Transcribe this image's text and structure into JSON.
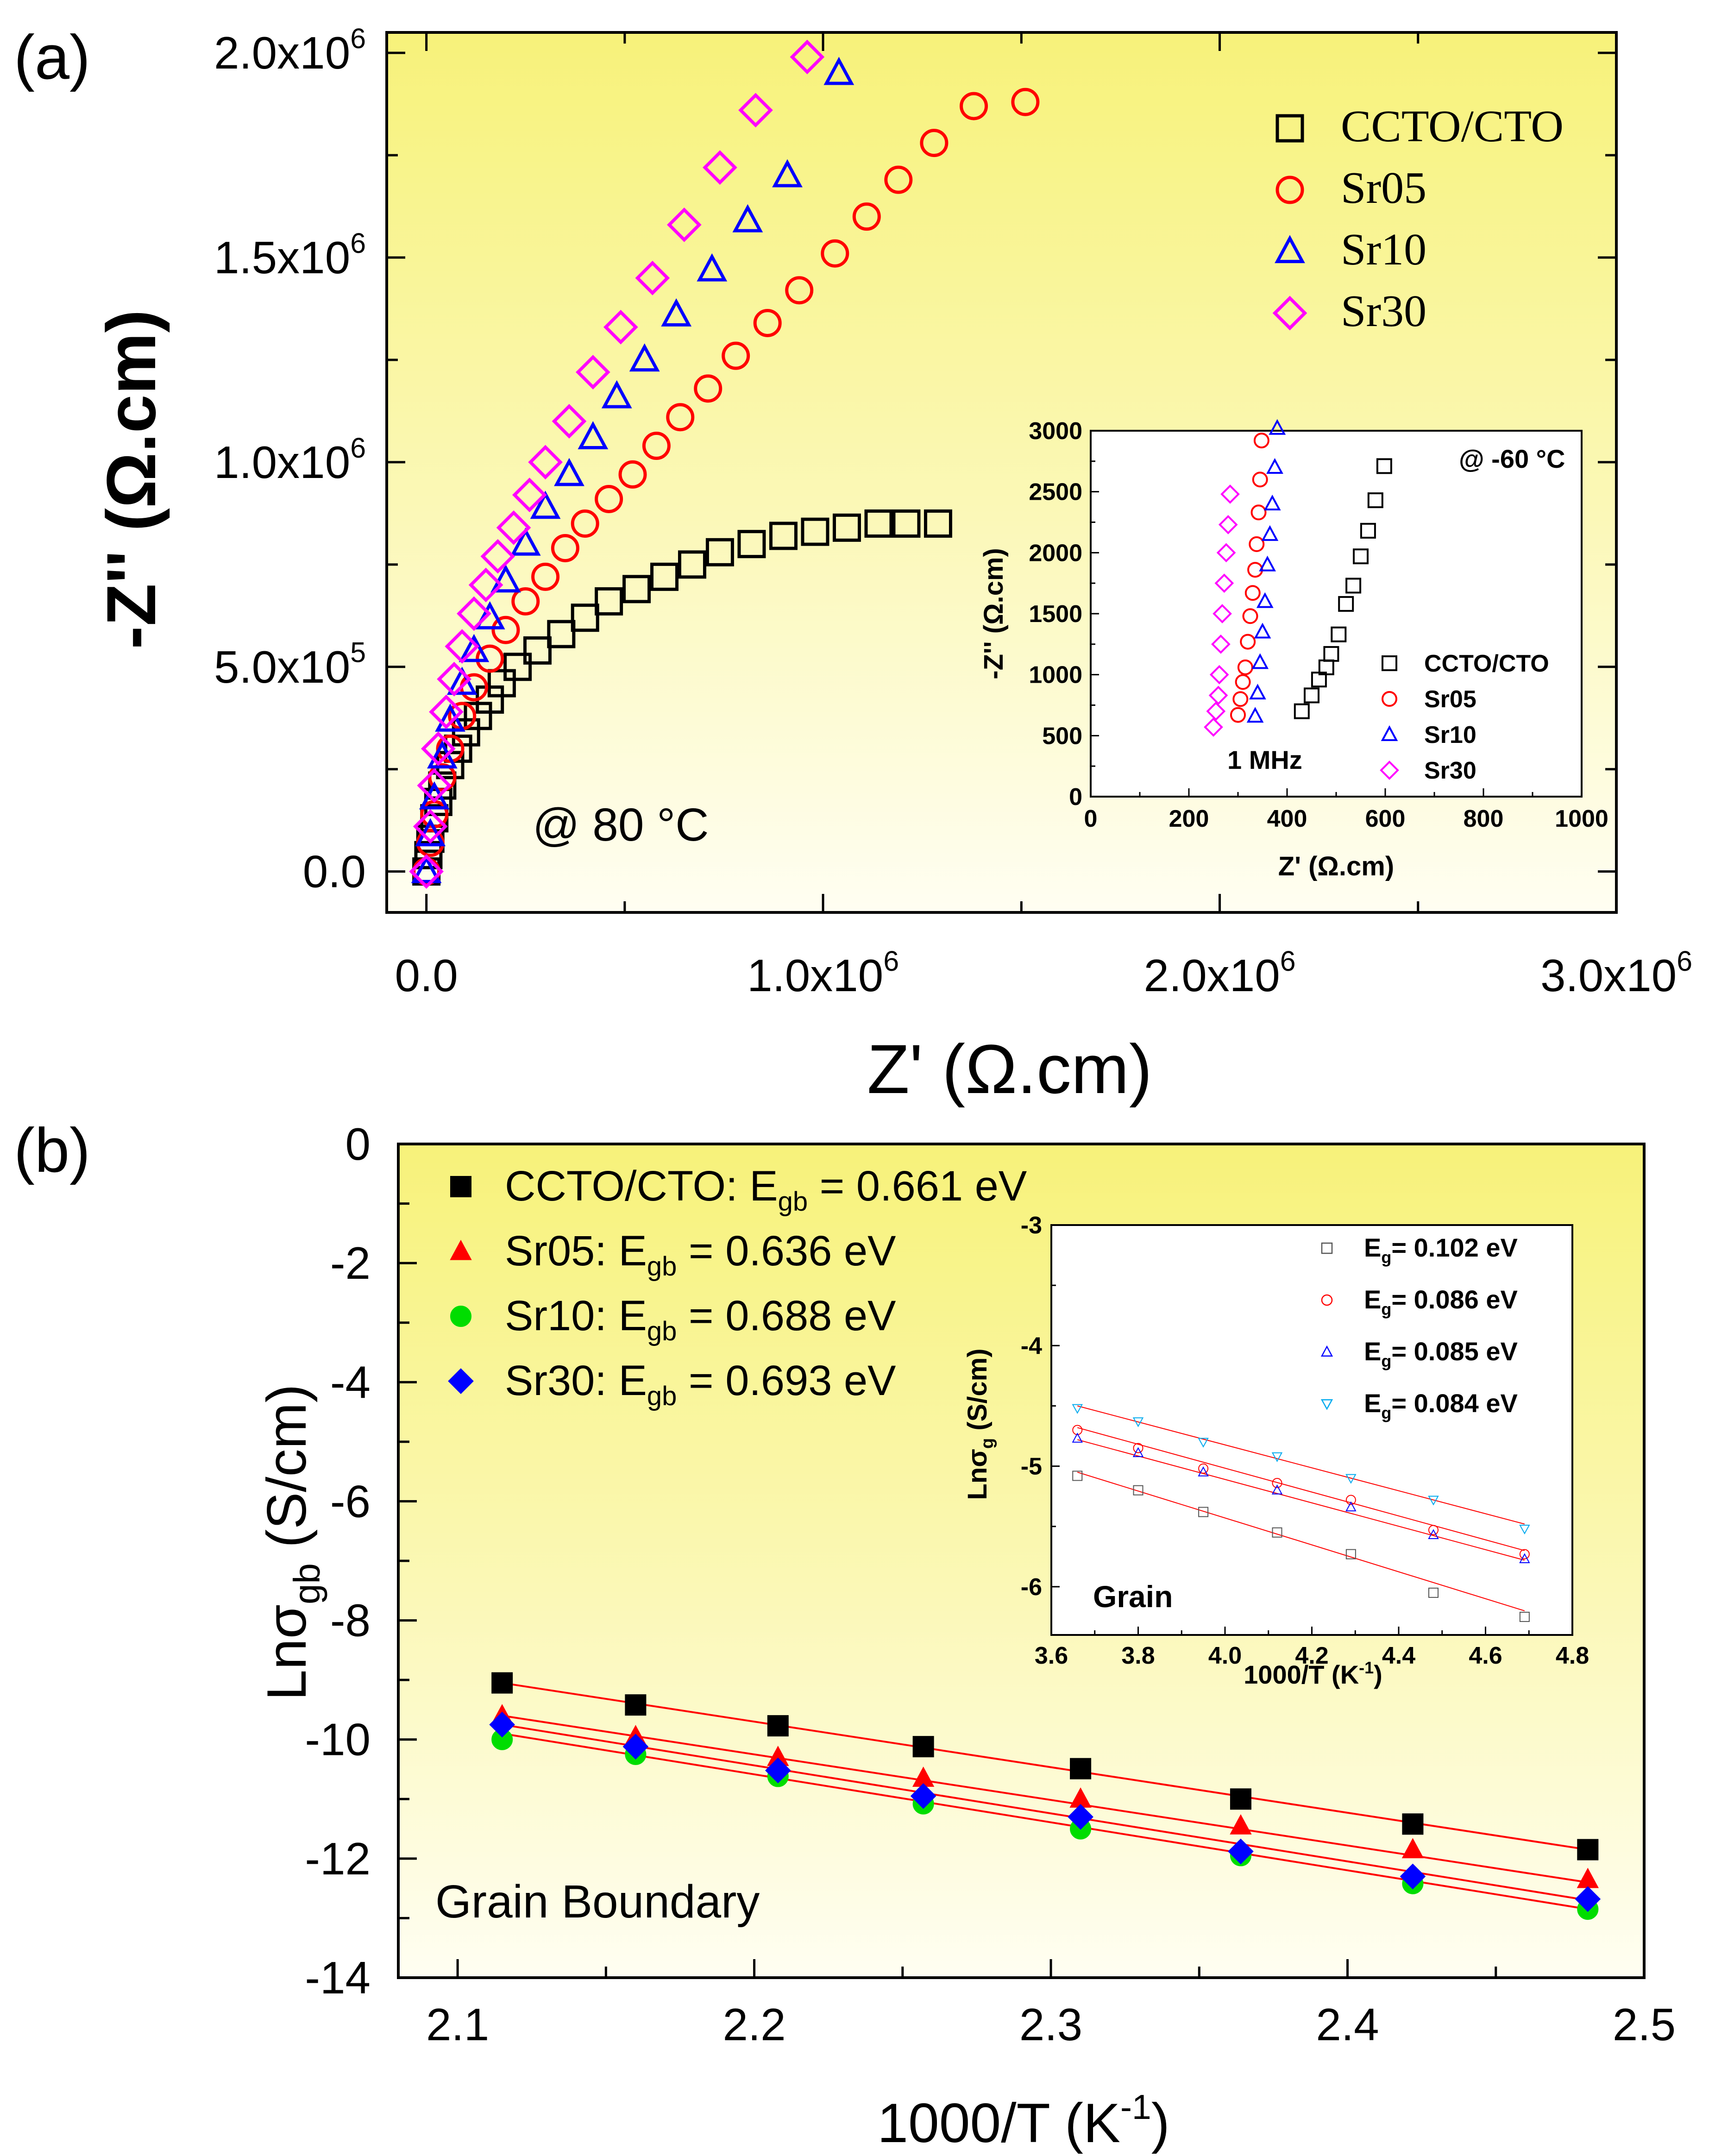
{
  "figure": {
    "panel_a_label": "(a)",
    "panel_b_label": "(b)"
  },
  "chart_data": [
    {
      "id": "panel-a-main",
      "type": "scatter",
      "title": "",
      "xlabel": "Z' (Ω.cm)",
      "ylabel": "-Z'' (Ω.cm)",
      "xlim": [
        -100000,
        3000000
      ],
      "ylim": [
        -100000,
        2050000
      ],
      "x_tick_labels": [
        {
          "value": 0,
          "mant": "0.0",
          "exp": ""
        },
        {
          "value": 1000000,
          "mant": "1.0x10",
          "exp": "6"
        },
        {
          "value": 2000000,
          "mant": "2.0x10",
          "exp": "6"
        },
        {
          "value": 3000000,
          "mant": "3.0x10",
          "exp": "6"
        }
      ],
      "y_tick_labels": [
        {
          "value": 0,
          "mant": "0.0",
          "exp": ""
        },
        {
          "value": 500000,
          "mant": "5.0x10",
          "exp": "5"
        },
        {
          "value": 1000000,
          "mant": "1.0x10",
          "exp": "6"
        },
        {
          "value": 1500000,
          "mant": "1.5x10",
          "exp": "6"
        },
        {
          "value": 2000000,
          "mant": "2.0x10",
          "exp": "6"
        }
      ],
      "annotation": "@ 80 °C",
      "legend_position": "top-right",
      "grid": false,
      "background": "yellow-gradient",
      "series": [
        {
          "name": "CCTO/CTO",
          "marker": "square",
          "color": "#000000",
          "x": [
            0,
            5000,
            10000,
            20000,
            30000,
            40000,
            60000,
            80000,
            100000,
            130000,
            160000,
            190000,
            230000,
            280000,
            340000,
            400000,
            460000,
            530000,
            600000,
            670000,
            740000,
            820000,
            900000,
            980000,
            1060000,
            1140000,
            1210000,
            1290000
          ],
          "y": [
            0,
            40000,
            80000,
            130000,
            170000,
            210000,
            260000,
            300000,
            340000,
            380000,
            420000,
            460000,
            500000,
            540000,
            580000,
            620000,
            660000,
            690000,
            720000,
            750000,
            780000,
            800000,
            820000,
            830000,
            840000,
            850000,
            850000,
            850000
          ]
        },
        {
          "name": "Sr05",
          "marker": "circle",
          "color": "#ff0000",
          "x": [
            0,
            10000,
            20000,
            40000,
            60000,
            90000,
            120000,
            160000,
            200000,
            250000,
            300000,
            350000,
            400000,
            460000,
            520000,
            580000,
            640000,
            710000,
            780000,
            860000,
            940000,
            1030000,
            1110000,
            1190000,
            1280000,
            1380000,
            1510000
          ],
          "y": [
            0,
            70000,
            140000,
            230000,
            300000,
            380000,
            450000,
            520000,
            590000,
            660000,
            720000,
            790000,
            850000,
            910000,
            970000,
            1040000,
            1110000,
            1180000,
            1260000,
            1340000,
            1420000,
            1510000,
            1600000,
            1690000,
            1780000,
            1870000,
            1880000
          ]
        },
        {
          "name": "Sr10",
          "marker": "triangle",
          "color": "#0000ff",
          "x": [
            0,
            10000,
            20000,
            40000,
            60000,
            90000,
            120000,
            160000,
            200000,
            250000,
            300000,
            360000,
            420000,
            480000,
            550000,
            630000,
            720000,
            810000,
            910000,
            1040000
          ],
          "y": [
            0,
            90000,
            180000,
            280000,
            370000,
            460000,
            540000,
            620000,
            710000,
            800000,
            890000,
            970000,
            1060000,
            1160000,
            1250000,
            1360000,
            1470000,
            1590000,
            1700000,
            1950000
          ]
        },
        {
          "name": "Sr30",
          "marker": "diamond",
          "color": "#ff00ff",
          "x": [
            0,
            10000,
            20000,
            30000,
            50000,
            70000,
            90000,
            120000,
            150000,
            180000,
            220000,
            260000,
            300000,
            360000,
            420000,
            490000,
            570000,
            650000,
            740000,
            830000,
            960000
          ],
          "y": [
            0,
            110000,
            210000,
            300000,
            390000,
            470000,
            550000,
            630000,
            700000,
            770000,
            840000,
            920000,
            1000000,
            1100000,
            1220000,
            1330000,
            1450000,
            1580000,
            1720000,
            1860000,
            1990000
          ]
        }
      ]
    },
    {
      "id": "panel-a-inset",
      "type": "scatter",
      "xlabel": "Z' (Ω.cm)",
      "ylabel": "-Z'' (Ω.cm)",
      "xlim": [
        0,
        1000
      ],
      "ylim": [
        0,
        3000
      ],
      "x_ticks": [
        0,
        200,
        400,
        600,
        800,
        1000
      ],
      "y_ticks": [
        0,
        500,
        1000,
        1500,
        2000,
        2500,
        3000
      ],
      "annotation": "@ -60 °C",
      "freq_label": "1 MHz",
      "series": [
        {
          "name": "CCTO/CTO",
          "marker": "square",
          "color": "#000000",
          "x": [
            430,
            450,
            465,
            480,
            490,
            505,
            520,
            535,
            550,
            565,
            580,
            598
          ],
          "y": [
            700,
            830,
            960,
            1060,
            1170,
            1330,
            1580,
            1730,
            1970,
            2180,
            2430,
            2710
          ]
        },
        {
          "name": "Sr05",
          "marker": "circle",
          "color": "#ff0000",
          "x": [
            300,
            305,
            310,
            315,
            320,
            325,
            330,
            335,
            338,
            342,
            345,
            348
          ],
          "y": [
            670,
            800,
            940,
            1060,
            1270,
            1480,
            1670,
            1860,
            2070,
            2330,
            2600,
            2920
          ]
        },
        {
          "name": "Sr10",
          "marker": "triangle",
          "color": "#0000ff",
          "x": [
            335,
            340,
            345,
            350,
            355,
            360,
            365,
            370,
            375,
            380
          ],
          "y": [
            660,
            850,
            1100,
            1350,
            1600,
            1900,
            2150,
            2400,
            2700,
            3020
          ]
        },
        {
          "name": "Sr30",
          "marker": "diamond",
          "color": "#ff00ff",
          "x": [
            250,
            255,
            260,
            262,
            265,
            268,
            272,
            276,
            280,
            284
          ],
          "y": [
            570,
            700,
            830,
            1000,
            1250,
            1500,
            1750,
            2000,
            2230,
            2480
          ]
        }
      ]
    },
    {
      "id": "panel-b-main",
      "type": "scatter",
      "xlabel": "1000/T (K",
      "xlabel_sup": "-1",
      "xlabel_tail": ")",
      "ylabel": "Lnσ",
      "ylabel_sub": "gb",
      "ylabel_tail": " (S/cm)",
      "xlim": [
        2.08,
        2.5
      ],
      "ylim": [
        -14,
        0
      ],
      "x_ticks": [
        2.1,
        2.2,
        2.3,
        2.4,
        2.5
      ],
      "y_ticks": [
        0,
        -2,
        -4,
        -6,
        -8,
        -10,
        -12,
        -14
      ],
      "annotation": "Grain Boundary",
      "legend_position": "top-left",
      "series": [
        {
          "name": "CCTO/CTO",
          "marker": "square-filled",
          "color": "#000000",
          "line_color": "#ff0000",
          "legend_prefix": "CCTO/CTO: E",
          "legend_sub": "gb",
          "legend_value": " = 0.661 eV",
          "x": [
            2.115,
            2.16,
            2.208,
            2.257,
            2.31,
            2.364,
            2.422,
            2.481
          ],
          "y": [
            -9.05,
            -9.42,
            -9.77,
            -10.12,
            -10.49,
            -11.0,
            -11.42,
            -11.85
          ],
          "fit": [
            [
              2.115,
              -9.05
            ],
            [
              2.481,
              -11.85
            ]
          ]
        },
        {
          "name": "Sr05",
          "marker": "triangle-filled",
          "color": "#ff0000",
          "line_color": "#ff0000",
          "legend_prefix": "Sr05: E",
          "legend_sub": "gb",
          "legend_value": " = 0.636 eV",
          "x": [
            2.115,
            2.16,
            2.208,
            2.257,
            2.31,
            2.364,
            2.422,
            2.481
          ],
          "y": [
            -9.6,
            -9.95,
            -10.3,
            -10.65,
            -11.0,
            -11.45,
            -11.85,
            -12.35
          ],
          "fit": [
            [
              2.115,
              -9.6
            ],
            [
              2.481,
              -12.4
            ]
          ]
        },
        {
          "name": "Sr10",
          "marker": "circle-filled",
          "color": "#00dd00",
          "line_color": "#ff0000",
          "legend_prefix": "Sr10: E",
          "legend_sub": "gb",
          "legend_value": " = 0.688 eV",
          "x": [
            2.115,
            2.16,
            2.208,
            2.257,
            2.31,
            2.364,
            2.422,
            2.481
          ],
          "y": [
            -10.0,
            -10.25,
            -10.62,
            -11.08,
            -11.5,
            -11.95,
            -12.42,
            -12.85
          ],
          "fit": [
            [
              2.115,
              -9.9
            ],
            [
              2.481,
              -12.85
            ]
          ]
        },
        {
          "name": "Sr30",
          "marker": "diamond-filled",
          "color": "#0000ff",
          "line_color": "#ff0000",
          "legend_prefix": "Sr30: E",
          "legend_sub": "gb",
          "legend_value": " = 0.693 eV",
          "x": [
            2.115,
            2.16,
            2.208,
            2.257,
            2.31,
            2.364,
            2.422,
            2.481
          ],
          "y": [
            -9.75,
            -10.12,
            -10.52,
            -10.95,
            -11.3,
            -11.88,
            -12.3,
            -12.68
          ],
          "fit": [
            [
              2.115,
              -9.75
            ],
            [
              2.481,
              -12.7
            ]
          ]
        }
      ]
    },
    {
      "id": "panel-b-inset",
      "type": "scatter",
      "xlabel": "1000/T (K",
      "xlabel_sup": "-1",
      "xlabel_tail": ")",
      "ylabel": "Lnσ",
      "ylabel_sub": "g",
      "ylabel_tail": " (S/cm)",
      "xlim": [
        3.6,
        4.8
      ],
      "ylim": [
        -6.4,
        -3.0
      ],
      "x_ticks": [
        3.6,
        3.8,
        4.0,
        4.2,
        4.4,
        4.6,
        4.8
      ],
      "y_ticks": [
        -3,
        -4,
        -5,
        -6
      ],
      "annotation": "Grain",
      "series": [
        {
          "name": "E_g 0.102",
          "marker": "square",
          "color": "#555555",
          "line_color": "#ff0000",
          "legend_prefix": "E",
          "legend_sub": "g",
          "legend_value": "= 0.102 eV",
          "x": [
            3.66,
            3.8,
            3.95,
            4.12,
            4.29,
            4.48,
            4.69
          ],
          "y": [
            -5.08,
            -5.2,
            -5.38,
            -5.55,
            -5.73,
            -6.05,
            -6.25
          ],
          "fit": [
            [
              3.66,
              -5.05
            ],
            [
              4.69,
              -6.2
            ]
          ]
        },
        {
          "name": "E_g 0.086",
          "marker": "circle",
          "color": "#ff0000",
          "line_color": "#ff0000",
          "legend_prefix": "E",
          "legend_sub": "g",
          "legend_value": "= 0.086 eV",
          "x": [
            3.66,
            3.8,
            3.95,
            4.12,
            4.29,
            4.48,
            4.69
          ],
          "y": [
            -4.7,
            -4.85,
            -5.02,
            -5.14,
            -5.28,
            -5.53,
            -5.73
          ],
          "fit": [
            [
              3.66,
              -4.68
            ],
            [
              4.69,
              -5.7
            ]
          ]
        },
        {
          "name": "E_g 0.085",
          "marker": "triangle",
          "color": "#0000ff",
          "line_color": "#ff0000",
          "legend_prefix": "E",
          "legend_sub": "g",
          "legend_value": "= 0.085 eV",
          "x": [
            3.66,
            3.8,
            3.95,
            4.12,
            4.29,
            4.48,
            4.69
          ],
          "y": [
            -4.77,
            -4.89,
            -5.05,
            -5.2,
            -5.34,
            -5.57,
            -5.77
          ],
          "fit": [
            [
              3.66,
              -4.78
            ],
            [
              4.69,
              -5.78
            ]
          ]
        },
        {
          "name": "E_g 0.084",
          "marker": "triangle-down",
          "color": "#00aaee",
          "line_color": "#ff0000",
          "legend_prefix": "E",
          "legend_sub": "g",
          "legend_value": "= 0.084 eV",
          "x": [
            3.66,
            3.8,
            3.95,
            4.12,
            4.29,
            4.48,
            4.69
          ],
          "y": [
            -4.52,
            -4.63,
            -4.8,
            -4.92,
            -5.1,
            -5.28,
            -5.52
          ],
          "fit": [
            [
              3.66,
              -4.5
            ],
            [
              4.69,
              -5.48
            ]
          ]
        }
      ]
    }
  ]
}
